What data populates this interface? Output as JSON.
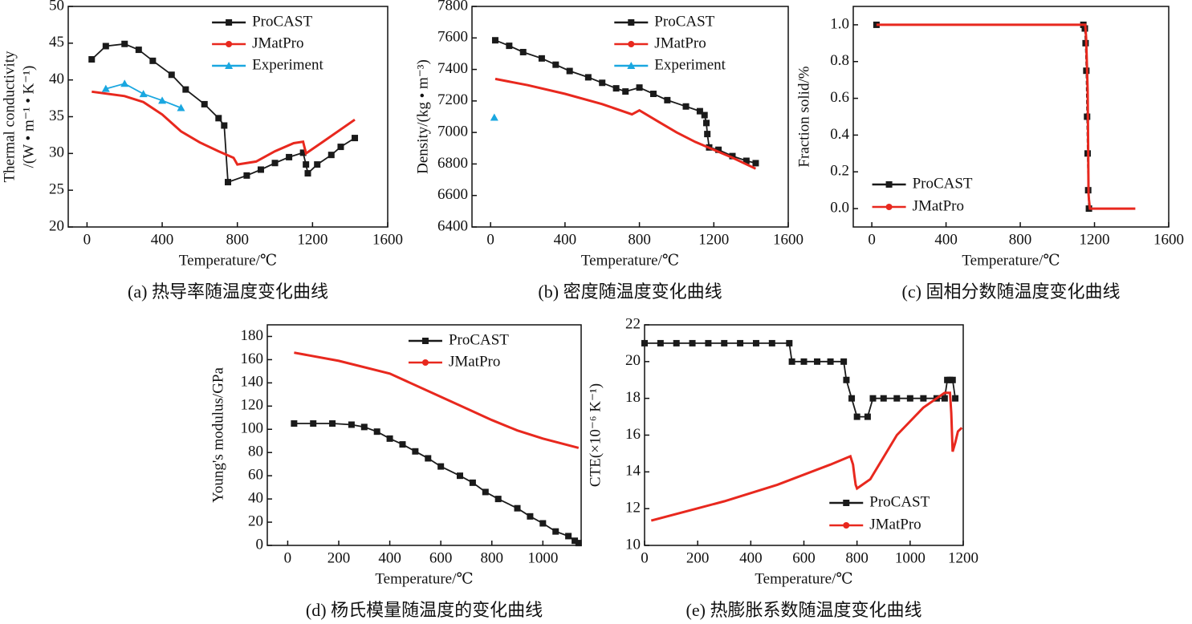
{
  "chart_data": [
    {
      "type": "line",
      "caption": "(a) 热导率随温度变化曲线",
      "xlabel": "Temperature/℃",
      "ylabel": [
        "Thermal conductivity",
        "/(W • m⁻¹ • K⁻¹)"
      ],
      "xlim": [
        -100,
        1600
      ],
      "xticks": [
        0,
        400,
        800,
        1200,
        1600
      ],
      "ylim": [
        20,
        50
      ],
      "yticks": [
        20,
        25,
        30,
        35,
        40,
        45,
        50
      ],
      "legend": "upper right",
      "series": [
        {
          "name": "ProCAST",
          "color": "#1a1a1a",
          "marker": "square",
          "x": [
            25,
            100,
            200,
            275,
            350,
            450,
            525,
            625,
            700,
            730,
            750,
            850,
            925,
            1000,
            1075,
            1150,
            1165,
            1175,
            1225,
            1300,
            1350,
            1425
          ],
          "values": [
            42.8,
            44.6,
            44.9,
            44.1,
            42.6,
            40.7,
            38.7,
            36.7,
            34.8,
            33.8,
            26.1,
            27,
            27.8,
            28.7,
            29.5,
            30.1,
            28.5,
            27.3,
            28.5,
            29.8,
            30.9,
            32.1
          ]
        },
        {
          "name": "JMatPro",
          "color": "#e8281e",
          "x": [
            25,
            200,
            300,
            400,
            500,
            600,
            700,
            780,
            800,
            900,
            1000,
            1100,
            1150,
            1165,
            1250,
            1425
          ],
          "values": [
            38.4,
            37.8,
            37,
            35.3,
            33,
            31.5,
            30.3,
            29.4,
            28.5,
            28.9,
            30.3,
            31.4,
            31.6,
            30,
            31.5,
            34.6
          ]
        },
        {
          "name": "Experiment",
          "color": "#1aa7e0",
          "marker": "triangle",
          "x": [
            100,
            200,
            300,
            400,
            500
          ],
          "values": [
            38.8,
            39.5,
            38.1,
            37.2,
            36.2
          ]
        }
      ]
    },
    {
      "type": "line",
      "caption": "(b) 密度随温度变化曲线",
      "xlabel": "Temperature/℃",
      "ylabel": [
        "Density/(kg • m⁻³)"
      ],
      "xlim": [
        -100,
        1600
      ],
      "xticks": [
        0,
        400,
        800,
        1200,
        1600
      ],
      "ylim": [
        6400,
        7800
      ],
      "yticks": [
        6400,
        6600,
        6800,
        7000,
        7200,
        7400,
        7600,
        7800
      ],
      "legend": "upper right",
      "series": [
        {
          "name": "ProCAST",
          "color": "#1a1a1a",
          "marker": "square",
          "x": [
            25,
            100,
            175,
            275,
            350,
            425,
            525,
            600,
            675,
            725,
            800,
            875,
            950,
            1050,
            1125,
            1150,
            1160,
            1165,
            1175,
            1225,
            1300,
            1375,
            1425
          ],
          "values": [
            7585,
            7550,
            7510,
            7470,
            7430,
            7390,
            7350,
            7315,
            7280,
            7260,
            7285,
            7245,
            7205,
            7165,
            7135,
            7110,
            7060,
            6990,
            6905,
            6890,
            6850,
            6820,
            6805
          ]
        },
        {
          "name": "JMatPro",
          "color": "#e8281e",
          "x": [
            25,
            200,
            400,
            600,
            760,
            800,
            900,
            1000,
            1100,
            1200,
            1300,
            1425
          ],
          "values": [
            7340,
            7300,
            7245,
            7180,
            7115,
            7140,
            7070,
            7000,
            6940,
            6890,
            6840,
            6770
          ]
        },
        {
          "name": "Experiment",
          "color": "#1aa7e0",
          "marker": "triangle",
          "x": [
            20
          ],
          "values": [
            7095
          ]
        }
      ]
    },
    {
      "type": "line",
      "caption": "(c) 固相分数随温度变化曲线",
      "xlabel": "Temperature/℃",
      "ylabel": [
        "Fraction solid/%"
      ],
      "xlim": [
        -100,
        1600
      ],
      "xticks": [
        0,
        400,
        800,
        1200,
        1600
      ],
      "ylim": [
        -0.1,
        1.1
      ],
      "yticks": [
        {
          "value": 0,
          "label": "0.0"
        },
        0.2,
        0.4,
        0.6,
        0.8,
        {
          "value": 1,
          "label": "1.0"
        }
      ],
      "legend": "lower left",
      "series": [
        {
          "name": "ProCAST",
          "color": "#1a1a1a",
          "marker": "square",
          "dashed": true,
          "x": [
            25,
            1140,
            1148,
            1152,
            1156,
            1160,
            1163,
            1166,
            1170
          ],
          "values": [
            1,
            1,
            0.98,
            0.9,
            0.75,
            0.5,
            0.3,
            0.1,
            0
          ]
        },
        {
          "name": "JMatPro",
          "color": "#e8281e",
          "x": [
            25,
            1150,
            1155,
            1160,
            1163,
            1166,
            1168,
            1170,
            1175,
            1420
          ],
          "values": [
            1,
            1,
            0.93,
            0.75,
            0.64,
            0.3,
            0.08,
            0.05,
            0,
            0
          ]
        }
      ]
    },
    {
      "type": "line",
      "caption": "(d) 杨氏模量随温度的变化曲线",
      "xlabel": "Temperature/℃",
      "ylabel": [
        "Young's modulus/GPa"
      ],
      "xlim": [
        -80,
        1150
      ],
      "xticks": [
        0,
        200,
        400,
        600,
        800,
        1000
      ],
      "ylim": [
        0,
        190
      ],
      "yticks": [
        0,
        20,
        40,
        60,
        80,
        100,
        120,
        140,
        160,
        180
      ],
      "legend": "upper right",
      "series": [
        {
          "name": "ProCAST",
          "color": "#1a1a1a",
          "marker": "square",
          "x": [
            25,
            100,
            175,
            250,
            300,
            350,
            400,
            450,
            500,
            550,
            600,
            675,
            725,
            775,
            825,
            900,
            950,
            1000,
            1050,
            1100,
            1125,
            1140
          ],
          "values": [
            105,
            105,
            105,
            104,
            102,
            98,
            92,
            87,
            81,
            75,
            68,
            60,
            54,
            46,
            40,
            32,
            25,
            19,
            12,
            8,
            4,
            2
          ]
        },
        {
          "name": "JMatPro",
          "color": "#e8281e",
          "x": [
            25,
            200,
            400,
            600,
            800,
            900,
            1000,
            1140
          ],
          "values": [
            166,
            159,
            148,
            128,
            108,
            99,
            92,
            84
          ]
        }
      ]
    },
    {
      "type": "line",
      "caption": "(e) 热膨胀系数随温度变化曲线",
      "xlabel": "Temperature/℃",
      "ylabel": [
        "CTE(×10⁻⁶ K⁻¹)"
      ],
      "xlim": [
        0,
        1200
      ],
      "xticks": [
        0,
        200,
        400,
        600,
        800,
        1000,
        1200
      ],
      "ylim": [
        10,
        22
      ],
      "yticks": [
        10,
        12,
        14,
        16,
        18,
        20,
        22
      ],
      "legend": "lower right",
      "series": [
        {
          "name": "ProCAST",
          "color": "#1a1a1a",
          "marker": "square",
          "x": [
            0,
            60,
            120,
            180,
            240,
            300,
            360,
            420,
            480,
            545,
            555,
            600,
            650,
            700,
            750,
            760,
            780,
            800,
            840,
            860,
            900,
            950,
            1000,
            1050,
            1100,
            1130,
            1140,
            1150,
            1160,
            1170
          ],
          "values": [
            21,
            21,
            21,
            21,
            21,
            21,
            21,
            21,
            21,
            21,
            20,
            20,
            20,
            20,
            20,
            19,
            18,
            17,
            17,
            18,
            18,
            18,
            18,
            18,
            18,
            18,
            19,
            19,
            19,
            18
          ]
        },
        {
          "name": "JMatPro",
          "color": "#e8281e",
          "x": [
            25,
            300,
            500,
            700,
            775,
            785,
            790,
            795,
            800,
            850,
            950,
            1050,
            1130,
            1150,
            1155,
            1160,
            1170,
            1180,
            1195
          ],
          "values": [
            11.35,
            12.4,
            13.3,
            14.4,
            14.85,
            14.4,
            13.8,
            13.3,
            13.1,
            13.6,
            16,
            17.5,
            18.3,
            18.3,
            17.2,
            15.1,
            15.6,
            16.2,
            16.4
          ]
        }
      ]
    }
  ]
}
